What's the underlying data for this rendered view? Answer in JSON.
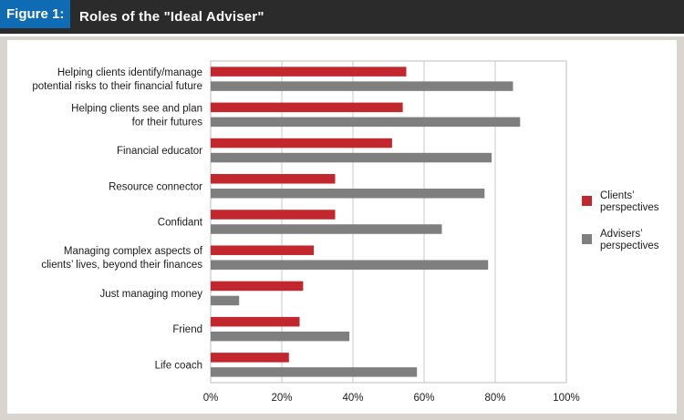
{
  "header": {
    "figure_label": "Figure 1:",
    "title": "Roles of the \"Ideal Adviser\""
  },
  "colors": {
    "clients": "#c1272d",
    "advisers": "#7f7f7f",
    "header_bg": "#2b2b2b",
    "label_bg": "#0f6cb4"
  },
  "chart_data": {
    "type": "bar",
    "orientation": "horizontal",
    "categories": [
      [
        "Helping clients identify/manage",
        "potential risks to their financial future"
      ],
      [
        "Helping clients see and plan",
        "for their futures"
      ],
      [
        "Financial educator"
      ],
      [
        "Resource connector"
      ],
      [
        "Confidant"
      ],
      [
        "Managing complex aspects of",
        "clients’ lives, beyond their finances"
      ],
      [
        "Just managing money"
      ],
      [
        "Friend"
      ],
      [
        "Life coach"
      ]
    ],
    "series": [
      {
        "name": [
          "Clients’",
          "perspectives"
        ],
        "color": "#c1272d",
        "values": [
          55,
          54,
          51,
          35,
          35,
          29,
          26,
          25,
          22
        ]
      },
      {
        "name": [
          "Advisers’",
          "perspectives"
        ],
        "color": "#7f7f7f",
        "values": [
          85,
          87,
          79,
          77,
          65,
          78,
          8,
          39,
          58
        ]
      }
    ],
    "xlim": [
      0,
      100
    ],
    "xticks": [
      "0%",
      "20%",
      "40%",
      "60%",
      "80%",
      "100%"
    ],
    "xtick_values": [
      0,
      20,
      40,
      60,
      80,
      100
    ],
    "grid": true,
    "legend_position": "right"
  }
}
